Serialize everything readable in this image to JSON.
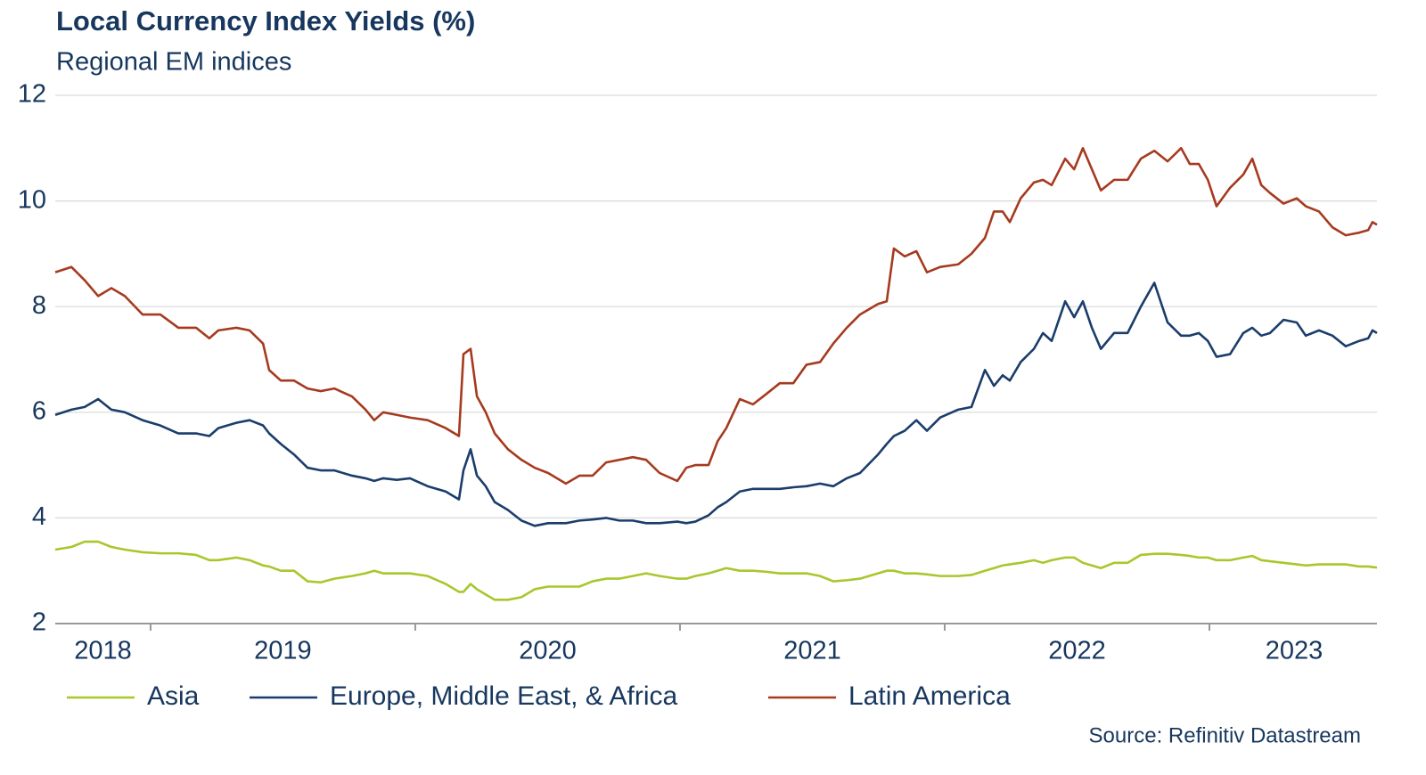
{
  "chart_data": {
    "type": "line",
    "title": "Local Currency Index Yields (%)",
    "subtitle": "Regional EM indices",
    "source": "Source: Refinitiv Datastream",
    "x": [
      2018.64,
      2018.701,
      2018.751,
      2018.802,
      2018.852,
      2018.903,
      2018.97,
      2019.037,
      2019.105,
      2019.172,
      2019.222,
      2019.256,
      2019.324,
      2019.374,
      2019.425,
      2019.448,
      2019.492,
      2019.542,
      2019.593,
      2019.643,
      2019.694,
      2019.761,
      2019.812,
      2019.845,
      2019.879,
      2019.93,
      2019.98,
      2020.047,
      2020.115,
      2020.165,
      2020.182,
      2020.209,
      2020.233,
      2020.266,
      2020.3,
      2020.35,
      2020.401,
      2020.451,
      2020.502,
      2020.569,
      2020.62,
      2020.67,
      2020.721,
      2020.771,
      2020.822,
      2020.872,
      2020.923,
      2020.99,
      2021.024,
      2021.058,
      2021.108,
      2021.142,
      2021.175,
      2021.226,
      2021.276,
      2021.327,
      2021.377,
      2021.428,
      2021.478,
      2021.529,
      2021.579,
      2021.63,
      2021.68,
      2021.748,
      2021.781,
      2021.808,
      2021.849,
      2021.893,
      2021.933,
      2021.983,
      2022.051,
      2022.101,
      2022.152,
      2022.186,
      2022.219,
      2022.246,
      2022.287,
      2022.337,
      2022.371,
      2022.404,
      2022.455,
      2022.489,
      2022.522,
      2022.556,
      2022.59,
      2022.64,
      2022.691,
      2022.741,
      2022.792,
      2022.842,
      2022.893,
      2022.926,
      2022.96,
      2022.994,
      2023.027,
      2023.078,
      2023.128,
      2023.162,
      2023.196,
      2023.229,
      2023.28,
      2023.33,
      2023.364,
      2023.414,
      2023.465,
      2023.515,
      2023.566,
      2023.6,
      2023.616,
      2023.633
    ],
    "series": [
      {
        "name": "Asia",
        "color": "#a8c72c",
        "values": [
          3.4,
          3.45,
          3.55,
          3.55,
          3.45,
          3.4,
          3.35,
          3.33,
          3.33,
          3.3,
          3.2,
          3.2,
          3.25,
          3.2,
          3.1,
          3.08,
          3.0,
          3.0,
          2.8,
          2.78,
          2.85,
          2.9,
          2.95,
          3.0,
          2.95,
          2.95,
          2.95,
          2.9,
          2.75,
          2.6,
          2.6,
          2.75,
          2.65,
          2.55,
          2.45,
          2.45,
          2.5,
          2.65,
          2.7,
          2.7,
          2.7,
          2.8,
          2.85,
          2.85,
          2.9,
          2.95,
          2.9,
          2.85,
          2.85,
          2.9,
          2.95,
          3.0,
          3.05,
          3.0,
          3.0,
          2.98,
          2.95,
          2.95,
          2.95,
          2.9,
          2.8,
          2.82,
          2.85,
          2.95,
          3.0,
          3.0,
          2.95,
          2.95,
          2.93,
          2.9,
          2.9,
          2.92,
          3.0,
          3.05,
          3.1,
          3.12,
          3.15,
          3.2,
          3.15,
          3.2,
          3.25,
          3.25,
          3.15,
          3.1,
          3.05,
          3.15,
          3.15,
          3.3,
          3.32,
          3.32,
          3.3,
          3.28,
          3.25,
          3.25,
          3.2,
          3.2,
          3.25,
          3.28,
          3.2,
          3.18,
          3.15,
          3.12,
          3.1,
          3.12,
          3.12,
          3.12,
          3.08,
          3.08,
          3.07,
          3.06
        ]
      },
      {
        "name": "Europe, Middle East, & Africa",
        "color": "#1b3d6b",
        "values": [
          5.95,
          6.05,
          6.1,
          6.25,
          6.05,
          6.0,
          5.85,
          5.75,
          5.6,
          5.6,
          5.55,
          5.7,
          5.8,
          5.85,
          5.75,
          5.6,
          5.4,
          5.2,
          4.95,
          4.9,
          4.9,
          4.8,
          4.75,
          4.7,
          4.75,
          4.72,
          4.75,
          4.6,
          4.5,
          4.35,
          4.9,
          5.3,
          4.8,
          4.6,
          4.3,
          4.15,
          3.95,
          3.85,
          3.9,
          3.9,
          3.95,
          3.97,
          4.0,
          3.95,
          3.95,
          3.9,
          3.9,
          3.93,
          3.9,
          3.93,
          4.05,
          4.2,
          4.3,
          4.5,
          4.55,
          4.55,
          4.55,
          4.58,
          4.6,
          4.65,
          4.6,
          4.75,
          4.85,
          5.2,
          5.4,
          5.55,
          5.65,
          5.85,
          5.65,
          5.9,
          6.05,
          6.1,
          6.8,
          6.5,
          6.7,
          6.6,
          6.95,
          7.2,
          7.5,
          7.35,
          8.1,
          7.8,
          8.1,
          7.6,
          7.2,
          7.5,
          7.5,
          8.0,
          8.45,
          7.7,
          7.45,
          7.45,
          7.5,
          7.35,
          7.05,
          7.1,
          7.5,
          7.6,
          7.45,
          7.5,
          7.75,
          7.7,
          7.45,
          7.55,
          7.45,
          7.25,
          7.35,
          7.4,
          7.55,
          7.5
        ]
      },
      {
        "name": "Latin America",
        "color": "#a63a1f",
        "values": [
          8.65,
          8.75,
          8.5,
          8.2,
          8.35,
          8.2,
          7.85,
          7.85,
          7.6,
          7.6,
          7.4,
          7.55,
          7.6,
          7.55,
          7.3,
          6.8,
          6.6,
          6.6,
          6.45,
          6.4,
          6.45,
          6.3,
          6.05,
          5.85,
          6.0,
          5.95,
          5.9,
          5.85,
          5.7,
          5.55,
          7.1,
          7.2,
          6.3,
          6.0,
          5.6,
          5.3,
          5.1,
          4.95,
          4.85,
          4.65,
          4.8,
          4.8,
          5.05,
          5.1,
          5.15,
          5.1,
          4.85,
          4.7,
          4.95,
          5.0,
          5.0,
          5.45,
          5.7,
          6.25,
          6.15,
          6.35,
          6.55,
          6.55,
          6.9,
          6.95,
          7.3,
          7.6,
          7.85,
          8.05,
          8.1,
          9.1,
          8.95,
          9.05,
          8.65,
          8.75,
          8.8,
          9.0,
          9.3,
          9.8,
          9.8,
          9.6,
          10.05,
          10.35,
          10.4,
          10.3,
          10.8,
          10.6,
          11.0,
          10.6,
          10.2,
          10.4,
          10.4,
          10.8,
          10.95,
          10.75,
          11.0,
          10.7,
          10.7,
          10.4,
          9.9,
          10.25,
          10.5,
          10.8,
          10.3,
          10.15,
          9.95,
          10.05,
          9.9,
          9.8,
          9.5,
          9.35,
          9.4,
          9.45,
          9.6,
          9.55
        ]
      }
    ],
    "xlim": [
      2018.64,
      2023.633
    ],
    "xticks": [
      {
        "value": 2018.82,
        "label": "2018"
      },
      {
        "value": 2019.5,
        "label": "2019"
      },
      {
        "value": 2020.5,
        "label": "2020"
      },
      {
        "value": 2021.5,
        "label": "2021"
      },
      {
        "value": 2022.5,
        "label": "2022"
      },
      {
        "value": 2023.32,
        "label": "2023"
      }
    ],
    "xtick_marks": [
      2019,
      2020,
      2021,
      2022,
      2023
    ],
    "ylim": [
      2,
      12
    ],
    "yticks": [
      2,
      4,
      6,
      8,
      10,
      12
    ],
    "grid": true,
    "legend": "bottom"
  }
}
